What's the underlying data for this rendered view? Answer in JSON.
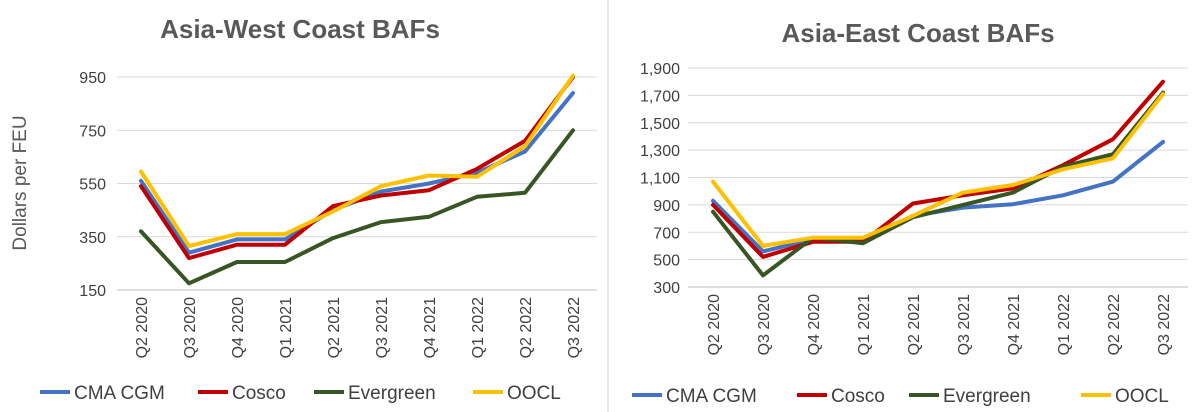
{
  "chart_data": [
    {
      "type": "line",
      "title": "Asia-West Coast BAFs",
      "ylabel": "Dollars per FEU",
      "xlabel": "",
      "categories": [
        "Q2 2020",
        "Q3 2020",
        "Q4 2020",
        "Q1 2021",
        "Q2 2021",
        "Q3 2021",
        "Q4 2021",
        "Q1 2022",
        "Q2 2022",
        "Q3 2022"
      ],
      "ylim": [
        150,
        950
      ],
      "yticks": [
        150,
        350,
        550,
        750,
        950
      ],
      "ytick_labels": [
        "150",
        "350",
        "550",
        "750",
        "950"
      ],
      "grid": true,
      "legend": "bottom",
      "series": [
        {
          "name": "CMA CGM",
          "color": "#4472C4",
          "values": [
            560,
            290,
            340,
            340,
            450,
            520,
            550,
            590,
            670,
            890
          ]
        },
        {
          "name": "Cosco",
          "color": "#C00000",
          "values": [
            540,
            270,
            320,
            320,
            465,
            505,
            525,
            605,
            710,
            950
          ]
        },
        {
          "name": "Evergreen",
          "color": "#375623",
          "values": [
            370,
            175,
            255,
            255,
            345,
            405,
            425,
            500,
            515,
            750
          ]
        },
        {
          "name": "OOCL",
          "color": "#FFC000",
          "values": [
            595,
            315,
            360,
            360,
            445,
            540,
            580,
            575,
            690,
            955
          ]
        }
      ]
    },
    {
      "type": "line",
      "title": "Asia-East Coast BAFs",
      "xlabel": "",
      "ylabel": "",
      "categories": [
        "Q2 2020",
        "Q3 2020",
        "Q4 2020",
        "Q1 2021",
        "Q2 2021",
        "Q3 2021",
        "Q4 2021",
        "Q1 2022",
        "Q2 2022",
        "Q3 2022"
      ],
      "ylim": [
        300,
        1900
      ],
      "yticks": [
        300,
        500,
        700,
        900,
        1100,
        1300,
        1500,
        1700,
        1900
      ],
      "ytick_labels": [
        "300",
        "500",
        "700",
        "900",
        "1,100",
        "1,300",
        "1,500",
        "1,700",
        "1,900"
      ],
      "grid": true,
      "legend": "bottom",
      "series": [
        {
          "name": "CMA CGM",
          "color": "#4472C4",
          "values": [
            930,
            560,
            650,
            640,
            820,
            880,
            905,
            970,
            1070,
            1360
          ]
        },
        {
          "name": "Cosco",
          "color": "#C00000",
          "values": [
            900,
            520,
            630,
            630,
            910,
            970,
            1020,
            1190,
            1380,
            1800
          ]
        },
        {
          "name": "Evergreen",
          "color": "#375623",
          "values": [
            850,
            385,
            660,
            620,
            810,
            900,
            990,
            1180,
            1270,
            1720
          ]
        },
        {
          "name": "OOCL",
          "color": "#FFC000",
          "values": [
            1070,
            600,
            660,
            660,
            820,
            990,
            1045,
            1160,
            1240,
            1710
          ]
        }
      ]
    }
  ]
}
